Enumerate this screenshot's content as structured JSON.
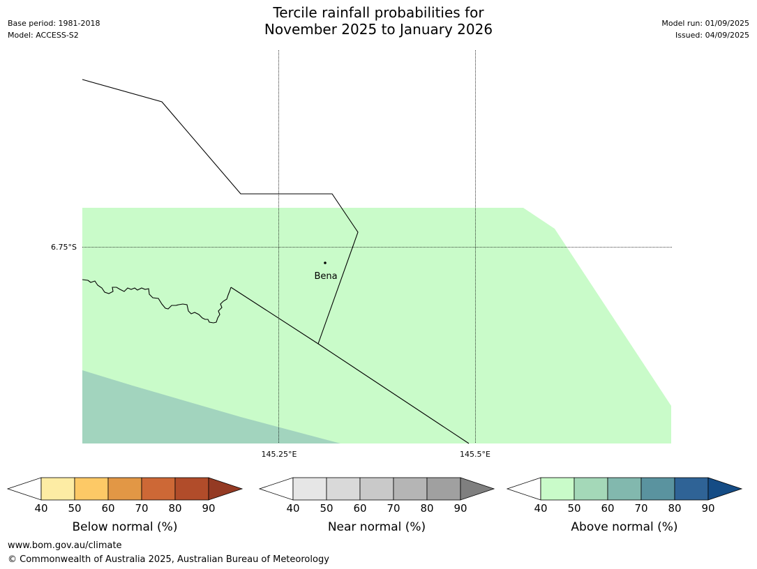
{
  "header": {
    "title_line1": "Tercile rainfall probabilities for",
    "title_line2": "November 2025 to January 2026",
    "base_period": "Base period: 1981-2018",
    "model": "Model: ACCESS-S2",
    "model_run": "Model run: 01/09/2025",
    "issued": "Issued: 04/09/2025"
  },
  "map": {
    "lat_label": "6.75°S",
    "lon_labels": [
      "145.25°E",
      "145.5°E"
    ],
    "town": "Bena",
    "colors": {
      "above_50": "#c9fbc9",
      "above_60": "#a2d4be",
      "boundary": "#000000"
    }
  },
  "colorbars": [
    {
      "label": "Below normal (%)",
      "ticks": [
        "40",
        "50",
        "60",
        "70",
        "80",
        "90"
      ],
      "colors": [
        "#ffffff",
        "#fdeca4",
        "#fdc966",
        "#e29745",
        "#cd6836",
        "#b14c2a",
        "#943a23"
      ]
    },
    {
      "label": "Near normal (%)",
      "ticks": [
        "40",
        "50",
        "60",
        "70",
        "80",
        "90"
      ],
      "colors": [
        "#ffffff",
        "#e6e6e6",
        "#d9d9d9",
        "#c9c9c9",
        "#b5b5b5",
        "#a0a0a0",
        "#7f7f7f"
      ]
    },
    {
      "label": "Above normal (%)",
      "ticks": [
        "40",
        "50",
        "60",
        "70",
        "80",
        "90"
      ],
      "colors": [
        "#ffffff",
        "#c9fbc9",
        "#a4d8b8",
        "#82b8ae",
        "#5a939f",
        "#2f6396",
        "#154c85"
      ]
    }
  ],
  "footer": {
    "url": "www.bom.gov.au/climate",
    "copyright": "© Commonwealth of Australia 2025, Australian Bureau of Meteorology"
  }
}
